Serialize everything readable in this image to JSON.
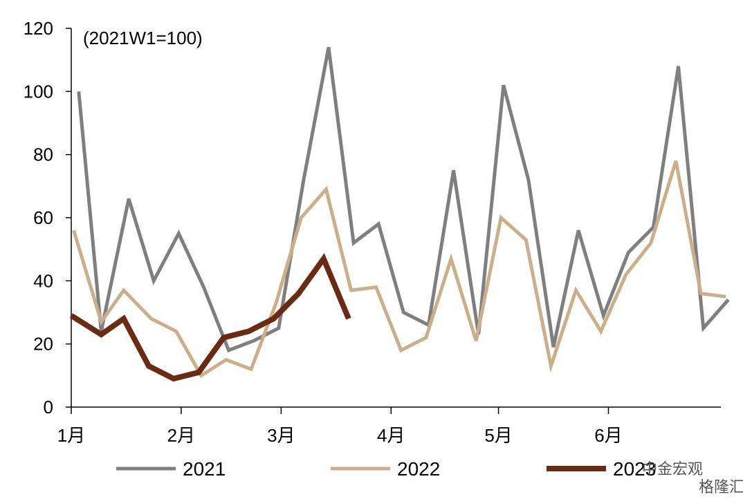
{
  "chart_data": {
    "type": "line",
    "note": "(2021W1=100)",
    "ylim": [
      0,
      120
    ],
    "yticks": [
      0,
      20,
      40,
      60,
      80,
      100,
      120
    ],
    "x_period_weeks": 26,
    "month_ticks": [
      {
        "label": "1月",
        "week": 0
      },
      {
        "label": "2月",
        "week": 4.4
      },
      {
        "label": "3月",
        "week": 8.4
      },
      {
        "label": "4月",
        "week": 12.8
      },
      {
        "label": "5月",
        "week": 17.1
      },
      {
        "label": "6月",
        "week": 21.5
      }
    ],
    "series": [
      {
        "name": "2021",
        "color": "#7f7f7f",
        "width": 5,
        "x": [
          0.3,
          1.2,
          2.3,
          3.3,
          4.3,
          5.3,
          6.3,
          7.3,
          8.3,
          9.3,
          10.3,
          11.3,
          12.3,
          13.3,
          14.3,
          15.3,
          16.3,
          17.3,
          18.3,
          19.3,
          20.3,
          21.3,
          22.3,
          23.3,
          24.3,
          25.3,
          26.3
        ],
        "values": [
          100,
          24,
          66,
          40,
          55,
          38,
          18,
          21,
          25,
          72,
          114,
          52,
          58,
          30,
          26,
          75,
          23,
          102,
          72,
          19,
          56,
          29,
          49,
          57,
          108,
          25,
          34
        ]
      },
      {
        "name": "2022",
        "color": "#c9b08a",
        "width": 5,
        "x": [
          0.1,
          1.2,
          2.1,
          3.2,
          4.2,
          5.2,
          6.2,
          7.2,
          8.2,
          9.2,
          10.2,
          11.2,
          12.2,
          13.2,
          14.2,
          15.2,
          16.2,
          17.2,
          18.2,
          19.2,
          20.2,
          21.2,
          22.2,
          23.2,
          24.2,
          25.2,
          26.2
        ],
        "values": [
          56,
          27,
          37,
          28,
          24,
          10,
          15,
          12,
          33,
          60,
          69,
          37,
          38,
          18,
          22,
          47,
          21,
          60,
          53,
          13,
          37,
          24,
          42,
          52,
          78,
          36,
          35
        ]
      },
      {
        "name": "2023",
        "color": "#6b2a12",
        "width": 8,
        "x": [
          0,
          1.2,
          2.1,
          3.1,
          4.1,
          5.1,
          6.1,
          7.1,
          8.1,
          9.1,
          10.1,
          11.1
        ],
        "values": [
          29,
          23,
          28,
          13,
          9,
          11,
          22,
          24,
          28,
          36,
          47,
          28
        ]
      }
    ]
  },
  "watermark": {
    "channel": "中金宏观",
    "site": "格隆汇"
  }
}
